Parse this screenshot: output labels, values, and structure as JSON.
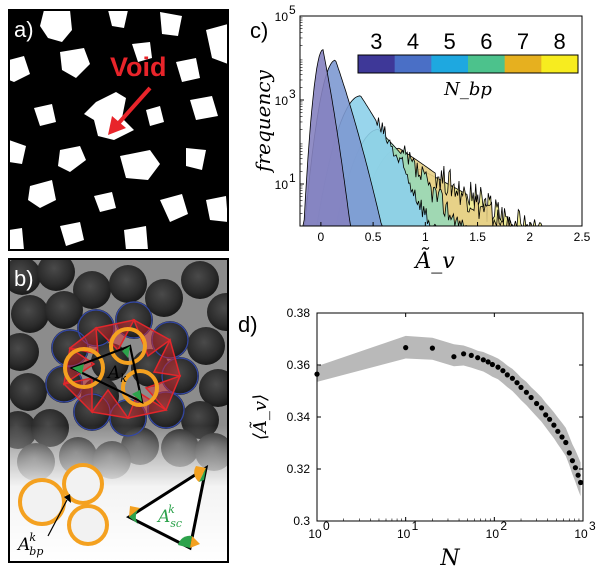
{
  "panels": {
    "a": {
      "label": "a)",
      "annotation": "Void"
    },
    "b": {
      "label": "b)",
      "labels": {
        "ak": "A",
        "ak_sub": "k",
        "asc": "A",
        "asc_sub": "sc",
        "asc_sup": "k",
        "abp": "A",
        "abp_sub": "bp",
        "abp_sup": "k"
      }
    },
    "c": {
      "label": "c)"
    },
    "d": {
      "label": "d)"
    }
  },
  "colors": {
    "void_arrow": "#e8242a",
    "black_cells": "#000000",
    "orange": "#f4a120",
    "green": "#2ca24b",
    "red": "#e2262b",
    "navy": "#2b3a8f",
    "band": "#b9b9b9"
  },
  "chart_data": [
    {
      "id": "c",
      "type": "area",
      "xlabel": "Ã_v",
      "ylabel": "frequency",
      "xlim": [
        -0.2,
        2.5
      ],
      "ylim_log10": [
        0,
        5
      ],
      "yscale": "log",
      "xticks": [
        "0",
        "0.5",
        "1",
        "1.5",
        "2",
        "2.5"
      ],
      "xtick_values": [
        0,
        0.5,
        1,
        1.5,
        2,
        2.5
      ],
      "yticks": [
        "10",
        "10",
        "10"
      ],
      "ytick_sup": [
        "1",
        "3",
        "5"
      ],
      "ytick_values": [
        1,
        3,
        5
      ],
      "colorbar": {
        "label": "N_bp",
        "labels": [
          "3",
          "4",
          "5",
          "6",
          "7",
          "8"
        ],
        "colors": [
          "#3e3898",
          "#4a6fc6",
          "#1ea8e0",
          "#4cc28c",
          "#e6b01f",
          "#f7ec1f"
        ]
      },
      "series": [
        {
          "name": "3",
          "color": "#8582c0",
          "peak_x": 0.02,
          "peak_log": 4.2,
          "left_w": 0.06,
          "right_w": 0.09,
          "tail": 0.0,
          "end_x": 0.3
        },
        {
          "name": "4",
          "color": "#7d99d2",
          "peak_x": 0.14,
          "peak_log": 3.95,
          "left_w": 0.1,
          "right_w": 0.16,
          "tail": 0.0,
          "end_x": 0.85
        },
        {
          "name": "5",
          "color": "#8dd0ea",
          "peak_x": 0.38,
          "peak_log": 3.1,
          "left_w": 0.16,
          "right_w": 0.3,
          "tail": 0.5,
          "end_x": 1.35
        },
        {
          "name": "6",
          "color": "#98d8b8",
          "peak_x": 0.55,
          "peak_log": 2.3,
          "left_w": 0.18,
          "right_w": 0.45,
          "tail": 0.6,
          "end_x": 1.85
        },
        {
          "name": "7",
          "color": "#e6cf86",
          "peak_x": 0.75,
          "peak_log": 1.85,
          "left_w": 0.2,
          "right_w": 0.7,
          "tail": 0.7,
          "end_x": 2.3
        },
        {
          "name": "8",
          "color": "#ece98c",
          "peak_x": 0.95,
          "peak_log": 1.35,
          "left_w": 0.22,
          "right_w": 0.9,
          "tail": 0.8,
          "end_x": 2.45
        }
      ]
    },
    {
      "id": "d",
      "type": "scatter",
      "xlabel": "N",
      "ylabel": "⟨Ã_v⟩",
      "xscale": "log",
      "xlim": [
        1,
        1000
      ],
      "ylim": [
        0.3,
        0.38
      ],
      "xticks": [
        "10",
        "10",
        "10",
        "10"
      ],
      "xtick_sup": [
        "0",
        "1",
        "2",
        "3"
      ],
      "xtick_values": [
        1,
        10,
        100,
        1000
      ],
      "yticks": [
        "0.3",
        "0.32",
        "0.34",
        "0.36",
        "0.38"
      ],
      "ytick_values": [
        0.3,
        0.32,
        0.34,
        0.36,
        0.38
      ],
      "x": [
        1,
        10,
        20,
        35,
        45,
        55,
        65,
        75,
        85,
        95,
        110,
        125,
        140,
        160,
        180,
        200,
        230,
        260,
        300,
        340,
        380,
        420,
        470,
        520,
        580,
        640,
        700,
        760,
        820,
        880,
        940
      ],
      "y": [
        0.3565,
        0.3667,
        0.3665,
        0.3632,
        0.3643,
        0.3637,
        0.3628,
        0.362,
        0.3612,
        0.3602,
        0.3592,
        0.3578,
        0.3562,
        0.3549,
        0.3532,
        0.3514,
        0.3495,
        0.3475,
        0.3452,
        0.3435,
        0.3408,
        0.3391,
        0.3369,
        0.3345,
        0.3323,
        0.3302,
        0.3262,
        0.3232,
        0.3205,
        0.3176,
        0.3148
      ],
      "band_upper": [
        0.3595,
        0.3712,
        0.3705,
        0.368,
        0.3675,
        0.3665,
        0.3655,
        0.365,
        0.3642,
        0.3635,
        0.3625,
        0.3612,
        0.3598,
        0.3585,
        0.3568,
        0.3552,
        0.3535,
        0.3515,
        0.3495,
        0.3476,
        0.3455,
        0.3438,
        0.3418,
        0.3398,
        0.3378,
        0.3358,
        0.3325,
        0.3295,
        0.3272,
        0.3248,
        0.3225
      ],
      "band_lower": [
        0.3535,
        0.3625,
        0.362,
        0.3595,
        0.3598,
        0.359,
        0.3582,
        0.3575,
        0.3565,
        0.3555,
        0.3545,
        0.353,
        0.3515,
        0.35,
        0.3482,
        0.3465,
        0.3445,
        0.3425,
        0.3402,
        0.3382,
        0.336,
        0.334,
        0.3318,
        0.3295,
        0.3272,
        0.325,
        0.3215,
        0.318,
        0.315,
        0.312,
        0.3095
      ]
    }
  ]
}
